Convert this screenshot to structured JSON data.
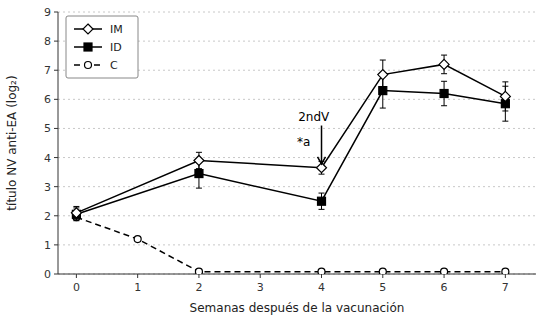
{
  "chart_data": {
    "type": "line",
    "x_label": "Semanas después de la vacunación",
    "y_label": "título NV anti-EA (log₂)",
    "xlim": [
      -0.3,
      7.5
    ],
    "ylim": [
      0,
      9
    ],
    "xticks": [
      0,
      1,
      2,
      3,
      4,
      5,
      6,
      7
    ],
    "yticks": [
      0,
      1,
      2,
      3,
      4,
      5,
      6,
      7,
      8,
      9
    ],
    "grid": "y",
    "legend": "upper left",
    "series": [
      {
        "name": "IM",
        "color": "#000000",
        "marker": "open-diamond",
        "line_style": "solid",
        "x": [
          0,
          2,
          4,
          5,
          6,
          7
        ],
        "values": [
          2.1,
          3.9,
          3.65,
          6.85,
          7.2,
          6.1
        ],
        "errors": [
          0.22,
          0.28,
          0.22,
          0.5,
          0.32,
          0.5
        ]
      },
      {
        "name": "ID",
        "color": "#000000",
        "marker": "square",
        "line_style": "solid",
        "x": [
          0,
          2,
          4,
          5,
          6,
          7
        ],
        "values": [
          2.05,
          3.45,
          2.5,
          6.3,
          6.2,
          5.85
        ],
        "errors": [
          0.22,
          0.5,
          0.28,
          0.6,
          0.42,
          0.6
        ]
      },
      {
        "name": "C",
        "color": "#000000",
        "marker": "open-circle",
        "line_style": "dashed",
        "x": [
          0,
          1,
          2,
          4,
          5,
          6,
          7
        ],
        "values": [
          1.95,
          1.2,
          0.08,
          0.08,
          0.08,
          0.08,
          0.08
        ]
      }
    ],
    "annotations": [
      {
        "text": "2ndV",
        "x": 3.62,
        "y": 5.15,
        "arrow": {
          "x": 4.0,
          "from": 5.1,
          "to": 3.78
        }
      },
      {
        "text": "*a",
        "x": 3.6,
        "y": 4.3
      }
    ]
  }
}
